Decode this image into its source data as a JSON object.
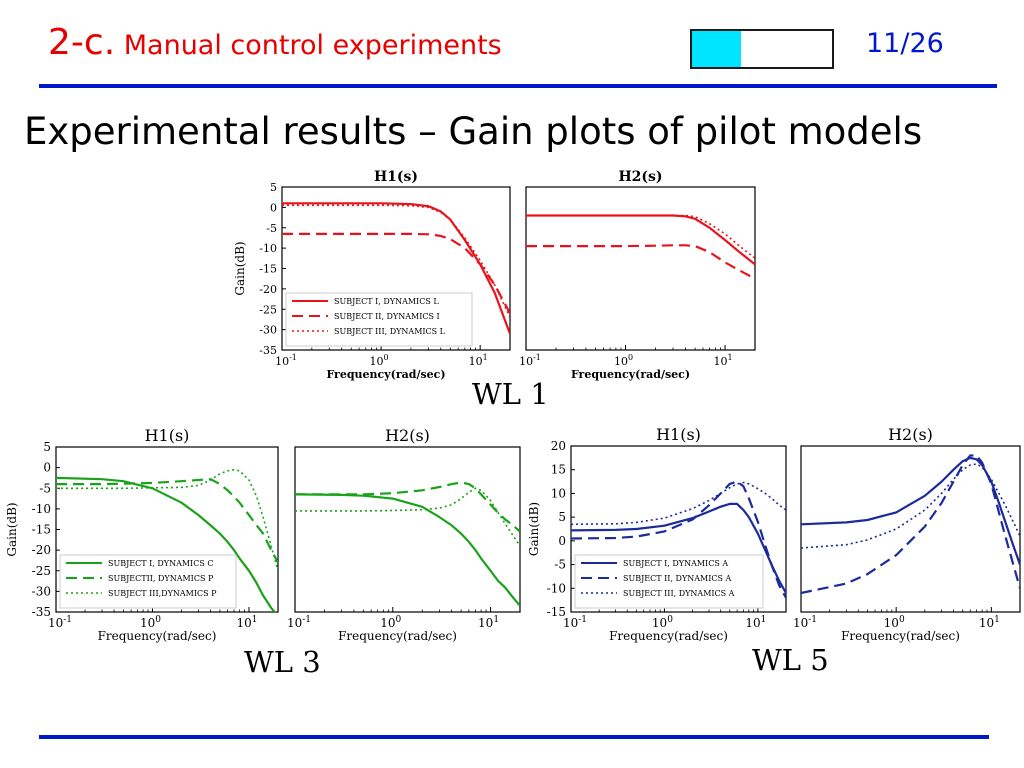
{
  "header": {
    "section_number": "2-c.",
    "section_title": "Manual control experiments",
    "page_number": "11/26",
    "progress_fraction": 0.35,
    "colors": {
      "title": "#e60000",
      "page_number": "#0018cc",
      "rule": "#0018cc",
      "progress_fill": "#00e5ff"
    }
  },
  "subtitle": "Experimental results – Gain plots of pilot models",
  "labels": {
    "wl1": "WL 1",
    "wl3": "WL 3",
    "wl5": "WL 5"
  },
  "chart_data": [
    {
      "id": "wl1-h1",
      "type": "line",
      "title": "H1(s)",
      "xlabel": "Frequency(rad/sec)",
      "ylabel": "Gain(dB)",
      "xscale": "log",
      "xlim": [
        0.1,
        20
      ],
      "ylim": [
        -35,
        5
      ],
      "yticks": [
        5,
        0,
        -5,
        -10,
        -15,
        -20,
        -25,
        -30,
        -35
      ],
      "xtick_labels": [
        "10-1",
        "100",
        "101"
      ],
      "legend": "bottom-left",
      "color": "#e8141c",
      "x": [
        0.1,
        0.5,
        1,
        2,
        3,
        4,
        5,
        7,
        10,
        14,
        20
      ],
      "series": [
        {
          "name": "SUBJECT I, DYNAMICS L",
          "style": "solid",
          "values": [
            1,
            1,
            1,
            0.8,
            0.3,
            -1,
            -3,
            -8,
            -14,
            -21,
            -31
          ]
        },
        {
          "name": "SUBJECT II, DYNAMICS I",
          "style": "dashed",
          "values": [
            -6.5,
            -6.5,
            -6.5,
            -6.5,
            -6.6,
            -7,
            -7.8,
            -10,
            -14,
            -19,
            -26
          ]
        },
        {
          "name": "SUBJECT III, DYNAMICS L",
          "style": "dotted",
          "values": [
            0.5,
            0.5,
            0.5,
            0.4,
            0,
            -1.2,
            -3,
            -7.5,
            -13,
            -19,
            -27
          ]
        }
      ]
    },
    {
      "id": "wl1-h2",
      "type": "line",
      "title": "H2(s)",
      "xlabel": "Frequency(rad/sec)",
      "xscale": "log",
      "xlim": [
        0.1,
        20
      ],
      "ylim": [
        -35,
        5
      ],
      "xtick_labels": [
        "10-1",
        "100",
        "101"
      ],
      "color": "#e8141c",
      "x": [
        0.1,
        0.5,
        1,
        2,
        3,
        4,
        5,
        7,
        10,
        14,
        20
      ],
      "series": [
        {
          "style": "solid",
          "values": [
            -2,
            -2,
            -2,
            -2,
            -2,
            -2.2,
            -2.8,
            -5,
            -8,
            -11,
            -14
          ]
        },
        {
          "style": "dashed",
          "values": [
            -9.5,
            -9.5,
            -9.5,
            -9.4,
            -9.3,
            -9.3,
            -9.5,
            -11,
            -13.5,
            -15.5,
            -17.5
          ]
        },
        {
          "style": "dotted",
          "values": [
            -2,
            -2,
            -2,
            -2,
            -2,
            -2,
            -2.3,
            -4,
            -6.5,
            -9.5,
            -12.5
          ]
        }
      ]
    },
    {
      "id": "wl3-h1",
      "type": "line",
      "title": "H1(s)",
      "xlabel": "Frequency(rad/sec)",
      "ylabel": "Gain(dB)",
      "xscale": "log",
      "xlim": [
        0.1,
        20
      ],
      "ylim": [
        -35,
        5
      ],
      "yticks": [
        5,
        0,
        -5,
        -10,
        -15,
        -20,
        -25,
        -30,
        -35
      ],
      "xtick_labels": [
        "10-1",
        "100",
        "101"
      ],
      "legend": "bottom-left",
      "color": "#1aa31a",
      "x": [
        0.1,
        0.3,
        0.5,
        1,
        2,
        3,
        4,
        5,
        6,
        7,
        8,
        10,
        12,
        14,
        17,
        20
      ],
      "series": [
        {
          "name": "SUBJECT I, DYNAMICS C",
          "style": "solid",
          "values": [
            -2.5,
            -2.8,
            -3.3,
            -5,
            -8.5,
            -11.5,
            -14,
            -16,
            -18,
            -20,
            -22,
            -25,
            -28,
            -31,
            -34,
            -36
          ]
        },
        {
          "name": "SUBJECTII, DYNAMICS P",
          "style": "dashed",
          "values": [
            -4,
            -4,
            -3.9,
            -3.7,
            -3.3,
            -3,
            -2.8,
            -4,
            -5.5,
            -7,
            -8.5,
            -11.5,
            -14,
            -16,
            -20,
            -23
          ]
        },
        {
          "name": "SUBJECT III,DYNAMICS P",
          "style": "dotted",
          "values": [
            -5,
            -5,
            -5,
            -4.9,
            -4.8,
            -4.3,
            -3,
            -1.5,
            -0.8,
            -0.5,
            -0.8,
            -3,
            -7,
            -12,
            -19,
            -25
          ]
        }
      ]
    },
    {
      "id": "wl3-h2",
      "type": "line",
      "title": "H2(s)",
      "xlabel": "Frequency(rad/sec)",
      "xscale": "log",
      "xlim": [
        0.1,
        20
      ],
      "ylim": [
        -35,
        5
      ],
      "xtick_labels": [
        "10-1",
        "100",
        "101"
      ],
      "color": "#1aa31a",
      "x": [
        0.1,
        0.3,
        0.5,
        1,
        2,
        3,
        4,
        5,
        6,
        7,
        8,
        10,
        12,
        14,
        17,
        20
      ],
      "series": [
        {
          "style": "solid",
          "values": [
            -6.5,
            -6.6,
            -6.8,
            -7.5,
            -9.5,
            -12,
            -14,
            -16,
            -18,
            -20,
            -22,
            -25,
            -27.5,
            -29,
            -31.5,
            -33.5
          ]
        },
        {
          "style": "dashed",
          "values": [
            -6.5,
            -6.5,
            -6.5,
            -6.2,
            -5.5,
            -4.7,
            -4,
            -3.6,
            -4,
            -5,
            -6.5,
            -9,
            -11,
            -12.5,
            -14,
            -15.5
          ]
        },
        {
          "style": "dotted",
          "values": [
            -10.5,
            -10.5,
            -10.5,
            -10.4,
            -10.2,
            -9.8,
            -9,
            -7.5,
            -6,
            -5,
            -5.5,
            -8,
            -11,
            -13.5,
            -16.5,
            -19
          ]
        }
      ]
    },
    {
      "id": "wl5-h1",
      "type": "line",
      "title": "H1(s)",
      "xlabel": "Frequency(rad/sec)",
      "ylabel": "Gain(dB)",
      "xscale": "log",
      "xlim": [
        0.1,
        20
      ],
      "ylim": [
        -15,
        20
      ],
      "yticks": [
        20,
        15,
        10,
        5,
        0,
        -5,
        -10,
        -15
      ],
      "xtick_labels": [
        "10-1",
        "100",
        "101"
      ],
      "legend": "bottom-left",
      "color": "#1c2a9c",
      "x": [
        0.1,
        0.3,
        0.5,
        1,
        2,
        3,
        4,
        5,
        6,
        7,
        8,
        10,
        12,
        14,
        17,
        20
      ],
      "series": [
        {
          "name": "SUBJECT I, DYNAMICS A",
          "style": "solid",
          "values": [
            2.2,
            2.3,
            2.5,
            3.2,
            4.8,
            6.2,
            7.2,
            7.8,
            7.8,
            6.5,
            5,
            1.5,
            -2,
            -5,
            -8.5,
            -11
          ]
        },
        {
          "name": "SUBJECT II, DYNAMICS A",
          "style": "dashed",
          "values": [
            0.5,
            0.6,
            0.9,
            2,
            4.5,
            7.5,
            10,
            12,
            12.5,
            11.5,
            9,
            4,
            -1,
            -5,
            -9.5,
            -12
          ]
        },
        {
          "name": "SUBJECT III, DYNAMICS A",
          "style": "dotted",
          "values": [
            3.5,
            3.6,
            3.9,
            4.8,
            6.8,
            8.5,
            10,
            11.2,
            12,
            12.3,
            12,
            11,
            10,
            9,
            7.5,
            6.5
          ]
        }
      ]
    },
    {
      "id": "wl5-h2",
      "type": "line",
      "title": "H2(s)",
      "xlabel": "Frequency(rad/sec)",
      "xscale": "log",
      "xlim": [
        0.1,
        20
      ],
      "ylim": [
        -15,
        20
      ],
      "xtick_labels": [
        "10-1",
        "100",
        "101"
      ],
      "color": "#1c2a9c",
      "x": [
        0.1,
        0.3,
        0.5,
        1,
        2,
        3,
        4,
        5,
        6,
        7,
        8,
        10,
        12,
        14,
        17,
        20
      ],
      "series": [
        {
          "style": "solid",
          "values": [
            3.5,
            3.9,
            4.4,
            6,
            9.5,
            12.5,
            15,
            16.8,
            17.5,
            17.2,
            16,
            12.5,
            8,
            4,
            -1,
            -5
          ]
        },
        {
          "style": "dashed",
          "values": [
            -11,
            -9,
            -7,
            -3,
            3,
            8,
            12.5,
            16,
            18,
            18,
            16.5,
            12,
            6,
            1,
            -5,
            -10
          ]
        },
        {
          "style": "dotted",
          "values": [
            -1.5,
            -0.8,
            0.2,
            2.5,
            6.5,
            10,
            13,
            15,
            16,
            16.2,
            15.5,
            13,
            10,
            7.5,
            4,
            1
          ]
        }
      ]
    }
  ]
}
